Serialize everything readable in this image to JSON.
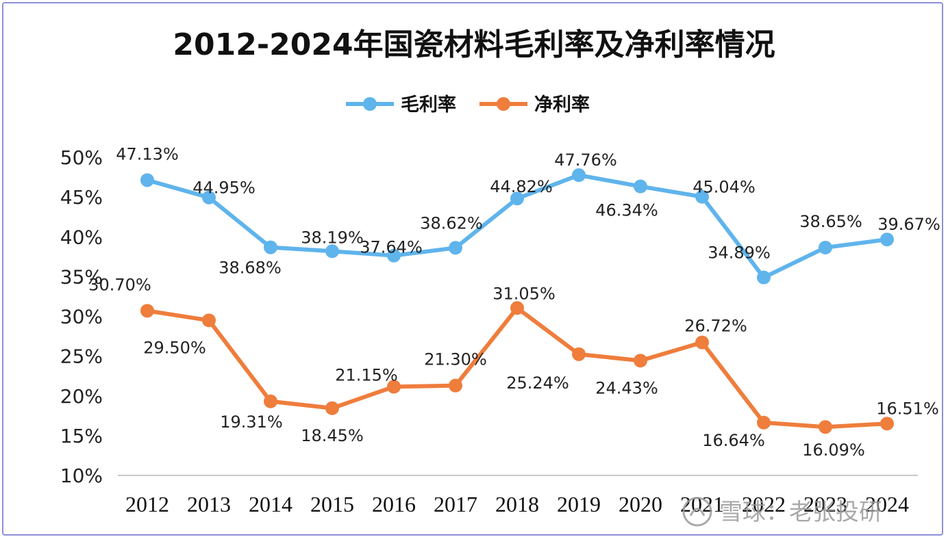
{
  "chart_data": {
    "type": "line",
    "title": "2012-2024年国瓷材料毛利率及净利率情况",
    "categories": [
      "2012",
      "2013",
      "2014",
      "2015",
      "2016",
      "2017",
      "2018",
      "2019",
      "2020",
      "2021",
      "2022",
      "2023",
      "2024"
    ],
    "ylim": [
      10,
      50
    ],
    "yticks": [
      "10%",
      "15%",
      "20%",
      "25%",
      "30%",
      "35%",
      "40%",
      "45%",
      "50%"
    ],
    "legend_position": "top",
    "grid": false,
    "series": [
      {
        "name": "毛利率",
        "color": "#5fb4ec",
        "values": [
          47.13,
          44.95,
          38.68,
          38.19,
          37.64,
          38.62,
          44.82,
          47.76,
          46.34,
          45.04,
          34.89,
          38.65,
          39.67
        ],
        "labels": [
          "47.13%",
          "44.95%",
          "38.68%",
          "38.19%",
          "37.64%",
          "38.62%",
          "44.82%",
          "47.76%",
          "46.34%",
          "45.04%",
          "34.89%",
          "38.65%",
          "39.67%"
        ]
      },
      {
        "name": "净利率",
        "color": "#ef7d3c",
        "values": [
          30.7,
          29.5,
          19.31,
          18.45,
          21.15,
          21.3,
          31.05,
          25.24,
          24.43,
          26.72,
          16.64,
          16.09,
          16.51
        ],
        "labels": [
          "30.70%",
          "29.50%",
          "19.31%",
          "18.45%",
          "21.15%",
          "21.30%",
          "31.05%",
          "25.24%",
          "24.43%",
          "26.72%",
          "16.64%",
          "16.09%",
          "16.51%"
        ]
      }
    ]
  },
  "watermark": "雪球：老张投研"
}
